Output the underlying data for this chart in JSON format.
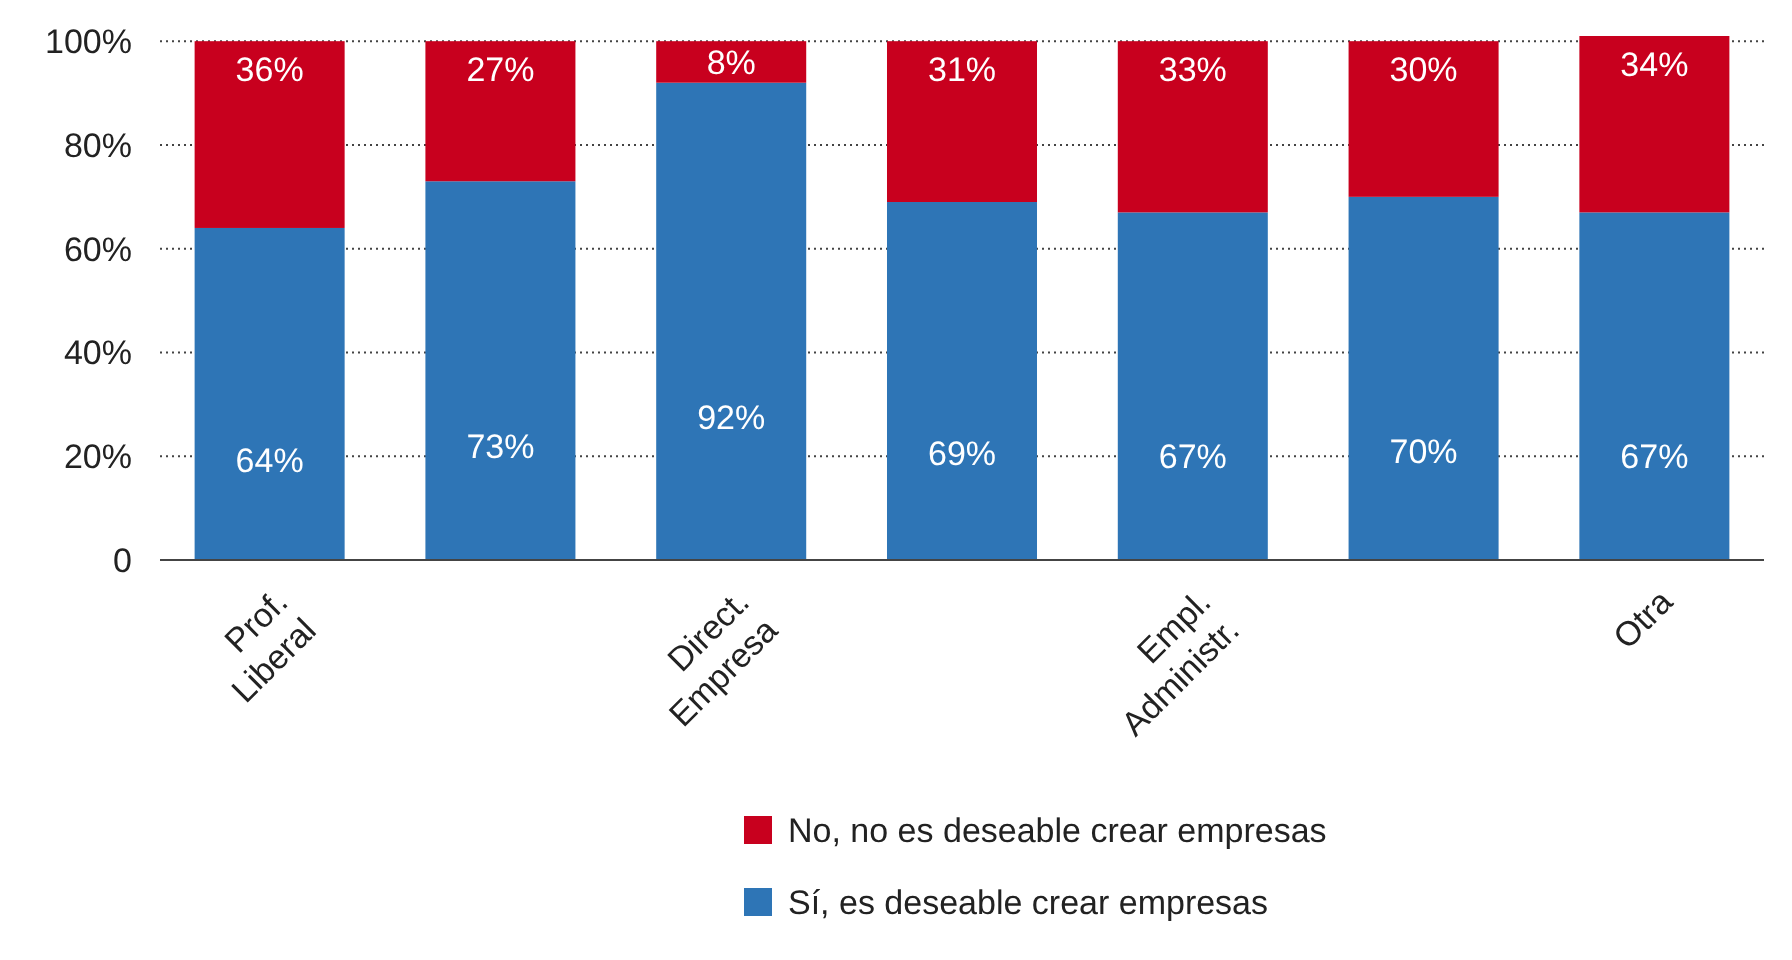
{
  "chart_data": {
    "type": "bar",
    "stacked": true,
    "categories": [
      "Prof. Liberal",
      null,
      "Direct. Empresa",
      null,
      "Empl. Administr.",
      null,
      "Otra"
    ],
    "series": [
      {
        "name": "Sí, es deseable crear empresas",
        "color": "#2e75b6",
        "values": [
          64,
          73,
          92,
          69,
          67,
          70,
          67
        ],
        "value_labels": [
          "64%",
          "73%",
          "92%",
          "69%",
          "67%",
          "70%",
          "67%"
        ]
      },
      {
        "name": "No, no es deseable crear empresas",
        "color": "#c8001e",
        "values": [
          36,
          27,
          8,
          31,
          33,
          30,
          34
        ],
        "value_labels": [
          "36%",
          "27%",
          "8%",
          "31%",
          "33%",
          "30%",
          "34%"
        ]
      }
    ],
    "ylim": [
      0,
      101
    ],
    "yticks": [
      {
        "value": 0,
        "label": "0"
      },
      {
        "value": 20,
        "label": "20%"
      },
      {
        "value": 40,
        "label": "40%"
      },
      {
        "value": 60,
        "label": "60%"
      },
      {
        "value": 80,
        "label": "80%"
      },
      {
        "value": 100,
        "label": "100%"
      }
    ],
    "grid": "y",
    "legend": "bottom"
  }
}
